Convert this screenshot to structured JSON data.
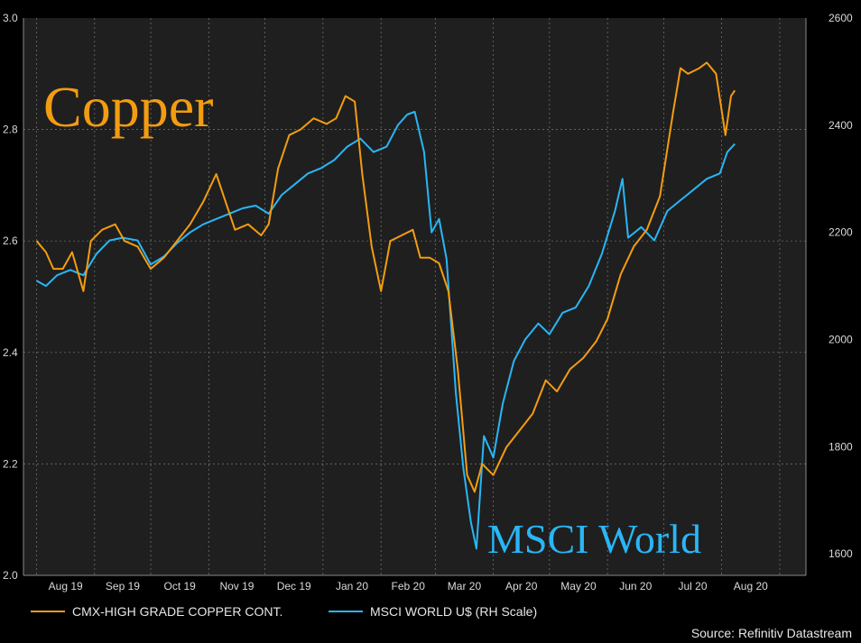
{
  "chart_data": {
    "type": "line",
    "annotations": {
      "copper": "Copper",
      "world": "MSCI World"
    },
    "source": "Source: Refinitiv Datastream",
    "x_ticks": [
      "Aug 19",
      "Sep 19",
      "Oct 19",
      "Nov 19",
      "Dec 19",
      "Jan 20",
      "Feb 20",
      "Mar 20",
      "Apr 20",
      "May 20",
      "Jun 20",
      "Jul 20",
      "Aug 20"
    ],
    "y_left": {
      "min": 2.0,
      "max": 3.0,
      "ticks": [
        "2.0",
        "2.2",
        "2.4",
        "2.6",
        "2.8",
        "3.0"
      ]
    },
    "y_right": {
      "min": 1560,
      "max": 2600,
      "ticks": [
        "1600",
        "1800",
        "2000",
        "2200",
        "2400",
        "2600"
      ]
    },
    "grid": true,
    "legend_position": "bottom-left",
    "colors": {
      "copper": "#f39c12",
      "world": "#29b6f6",
      "background": "#1f1f1f",
      "grid": "#7a7a7a"
    },
    "series": [
      {
        "name": "CMX-HIGH GRADE COPPER CONT.",
        "axis": "left",
        "points": [
          [
            "2019-08-01",
            2.6
          ],
          [
            "2019-08-06",
            2.58
          ],
          [
            "2019-08-10",
            2.55
          ],
          [
            "2019-08-15",
            2.55
          ],
          [
            "2019-08-20",
            2.58
          ],
          [
            "2019-08-26",
            2.51
          ],
          [
            "2019-08-30",
            2.6
          ],
          [
            "2019-09-05",
            2.62
          ],
          [
            "2019-09-12",
            2.63
          ],
          [
            "2019-09-17",
            2.6
          ],
          [
            "2019-09-24",
            2.59
          ],
          [
            "2019-10-01",
            2.55
          ],
          [
            "2019-10-08",
            2.57
          ],
          [
            "2019-10-15",
            2.6
          ],
          [
            "2019-10-22",
            2.63
          ],
          [
            "2019-10-29",
            2.67
          ],
          [
            "2019-11-05",
            2.72
          ],
          [
            "2019-11-10",
            2.67
          ],
          [
            "2019-11-15",
            2.62
          ],
          [
            "2019-11-22",
            2.63
          ],
          [
            "2019-11-29",
            2.61
          ],
          [
            "2019-12-03",
            2.63
          ],
          [
            "2019-12-08",
            2.73
          ],
          [
            "2019-12-14",
            2.79
          ],
          [
            "2019-12-20",
            2.8
          ],
          [
            "2019-12-27",
            2.82
          ],
          [
            "2020-01-03",
            2.81
          ],
          [
            "2020-01-08",
            2.82
          ],
          [
            "2020-01-13",
            2.86
          ],
          [
            "2020-01-18",
            2.85
          ],
          [
            "2020-01-22",
            2.72
          ],
          [
            "2020-01-27",
            2.59
          ],
          [
            "2020-02-01",
            2.51
          ],
          [
            "2020-02-06",
            2.6
          ],
          [
            "2020-02-12",
            2.61
          ],
          [
            "2020-02-18",
            2.62
          ],
          [
            "2020-02-22",
            2.57
          ],
          [
            "2020-02-27",
            2.57
          ],
          [
            "2020-03-03",
            2.56
          ],
          [
            "2020-03-08",
            2.51
          ],
          [
            "2020-03-13",
            2.37
          ],
          [
            "2020-03-18",
            2.18
          ],
          [
            "2020-03-22",
            2.15
          ],
          [
            "2020-03-26",
            2.2
          ],
          [
            "2020-04-01",
            2.18
          ],
          [
            "2020-04-08",
            2.23
          ],
          [
            "2020-04-15",
            2.26
          ],
          [
            "2020-04-22",
            2.29
          ],
          [
            "2020-04-29",
            2.35
          ],
          [
            "2020-05-05",
            2.33
          ],
          [
            "2020-05-12",
            2.37
          ],
          [
            "2020-05-19",
            2.39
          ],
          [
            "2020-05-26",
            2.42
          ],
          [
            "2020-06-01",
            2.46
          ],
          [
            "2020-06-08",
            2.54
          ],
          [
            "2020-06-15",
            2.59
          ],
          [
            "2020-06-22",
            2.62
          ],
          [
            "2020-06-29",
            2.68
          ],
          [
            "2020-07-06",
            2.83
          ],
          [
            "2020-07-10",
            2.91
          ],
          [
            "2020-07-14",
            2.9
          ],
          [
            "2020-07-20",
            2.91
          ],
          [
            "2020-07-24",
            2.92
          ],
          [
            "2020-07-29",
            2.9
          ],
          [
            "2020-08-03",
            2.79
          ],
          [
            "2020-08-06",
            2.86
          ],
          [
            "2020-08-08",
            2.87
          ]
        ]
      },
      {
        "name": "MSCI WORLD U$ (RH Scale)",
        "axis": "right",
        "points": [
          [
            "2019-08-01",
            2110
          ],
          [
            "2019-08-06",
            2100
          ],
          [
            "2019-08-12",
            2120
          ],
          [
            "2019-08-19",
            2130
          ],
          [
            "2019-08-26",
            2120
          ],
          [
            "2019-09-02",
            2160
          ],
          [
            "2019-09-09",
            2185
          ],
          [
            "2019-09-16",
            2190
          ],
          [
            "2019-09-24",
            2185
          ],
          [
            "2019-10-01",
            2140
          ],
          [
            "2019-10-08",
            2155
          ],
          [
            "2019-10-15",
            2180
          ],
          [
            "2019-10-22",
            2200
          ],
          [
            "2019-10-29",
            2215
          ],
          [
            "2019-11-05",
            2225
          ],
          [
            "2019-11-12",
            2235
          ],
          [
            "2019-11-19",
            2245
          ],
          [
            "2019-11-26",
            2250
          ],
          [
            "2019-12-03",
            2235
          ],
          [
            "2019-12-10",
            2270
          ],
          [
            "2019-12-17",
            2290
          ],
          [
            "2019-12-24",
            2310
          ],
          [
            "2019-12-31",
            2320
          ],
          [
            "2020-01-07",
            2335
          ],
          [
            "2020-01-14",
            2360
          ],
          [
            "2020-01-21",
            2375
          ],
          [
            "2020-01-28",
            2350
          ],
          [
            "2020-02-04",
            2360
          ],
          [
            "2020-02-10",
            2400
          ],
          [
            "2020-02-15",
            2420
          ],
          [
            "2020-02-19",
            2425
          ],
          [
            "2020-02-24",
            2350
          ],
          [
            "2020-02-28",
            2200
          ],
          [
            "2020-03-03",
            2225
          ],
          [
            "2020-03-07",
            2150
          ],
          [
            "2020-03-12",
            1900
          ],
          [
            "2020-03-16",
            1760
          ],
          [
            "2020-03-20",
            1660
          ],
          [
            "2020-03-23",
            1610
          ],
          [
            "2020-03-27",
            1820
          ],
          [
            "2020-04-01",
            1780
          ],
          [
            "2020-04-06",
            1880
          ],
          [
            "2020-04-12",
            1960
          ],
          [
            "2020-04-18",
            2000
          ],
          [
            "2020-04-25",
            2030
          ],
          [
            "2020-05-01",
            2010
          ],
          [
            "2020-05-08",
            2050
          ],
          [
            "2020-05-15",
            2060
          ],
          [
            "2020-05-22",
            2100
          ],
          [
            "2020-05-29",
            2160
          ],
          [
            "2020-06-05",
            2240
          ],
          [
            "2020-06-09",
            2300
          ],
          [
            "2020-06-12",
            2190
          ],
          [
            "2020-06-19",
            2210
          ],
          [
            "2020-06-26",
            2185
          ],
          [
            "2020-07-03",
            2240
          ],
          [
            "2020-07-10",
            2260
          ],
          [
            "2020-07-17",
            2280
          ],
          [
            "2020-07-24",
            2300
          ],
          [
            "2020-07-31",
            2310
          ],
          [
            "2020-08-04",
            2350
          ],
          [
            "2020-08-08",
            2365
          ]
        ]
      }
    ]
  }
}
